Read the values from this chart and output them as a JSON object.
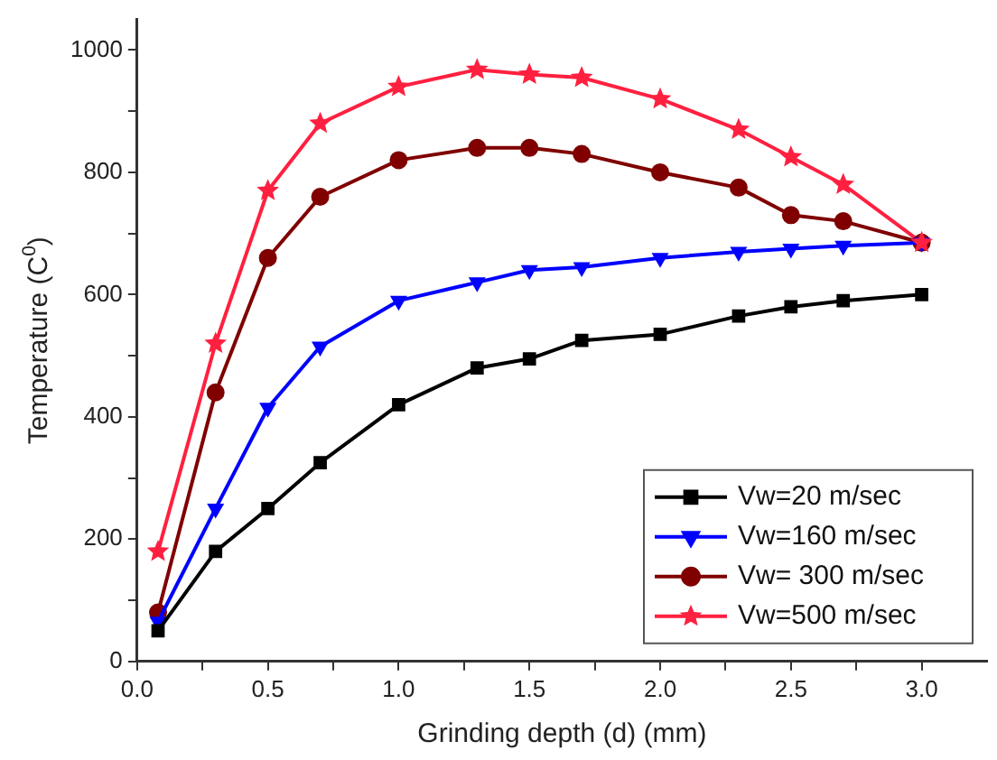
{
  "chart_data": {
    "type": "line",
    "xlabel": "Grinding depth (d) (mm)",
    "ylabel": "Temperature (C$^{0}$)",
    "x": [
      0.08,
      0.3,
      0.5,
      0.7,
      1.0,
      1.3,
      1.5,
      1.7,
      2.0,
      2.3,
      2.5,
      2.7,
      3.0
    ],
    "series": [
      {
        "name": "Vw=20 m/sec",
        "color": "#000000",
        "marker": "square",
        "values": [
          50,
          180,
          250,
          325,
          420,
          480,
          495,
          525,
          535,
          565,
          580,
          590,
          600
        ]
      },
      {
        "name": "Vw=160 m/sec",
        "color": "#0000ff",
        "marker": "triangle",
        "values": [
          65,
          250,
          415,
          515,
          590,
          620,
          640,
          645,
          660,
          670,
          675,
          680,
          685
        ]
      },
      {
        "name": "Vw= 300 m/sec",
        "color": "#800000",
        "marker": "circle",
        "values": [
          80,
          440,
          660,
          760,
          820,
          840,
          840,
          830,
          800,
          775,
          730,
          720,
          685
        ]
      },
      {
        "name": "Vw=500 m/sec",
        "color": "#ff2040",
        "marker": "star",
        "values": [
          180,
          520,
          770,
          880,
          940,
          968,
          960,
          955,
          920,
          870,
          825,
          780,
          685
        ]
      }
    ],
    "xlim": [
      0,
      3.25
    ],
    "ylim": [
      0,
      1050
    ],
    "xticks": [
      {
        "value": 0,
        "label": "0.0"
      },
      {
        "value": 0.25,
        "label": null
      },
      {
        "value": 0.5,
        "label": "0.5"
      },
      {
        "value": 0.75,
        "label": null
      },
      {
        "value": 1,
        "label": "1.0"
      },
      {
        "value": 1.25,
        "label": null
      },
      {
        "value": 1.5,
        "label": "1.5"
      },
      {
        "value": 1.75,
        "label": null
      },
      {
        "value": 2,
        "label": "2.0"
      },
      {
        "value": 2.25,
        "label": null
      },
      {
        "value": 2.5,
        "label": "2.5"
      },
      {
        "value": 2.75,
        "label": null
      },
      {
        "value": 3,
        "label": "3.0"
      }
    ],
    "yticks": [
      0,
      {
        "value": 100,
        "label": null
      },
      200,
      {
        "value": 300,
        "label": null
      },
      400,
      {
        "value": 500,
        "label": null
      },
      600,
      {
        "value": 700,
        "label": null
      },
      800,
      {
        "value": 900,
        "label": null
      },
      1000
    ],
    "grid": false,
    "legend": "bottom right",
    "line_style": "solid"
  }
}
